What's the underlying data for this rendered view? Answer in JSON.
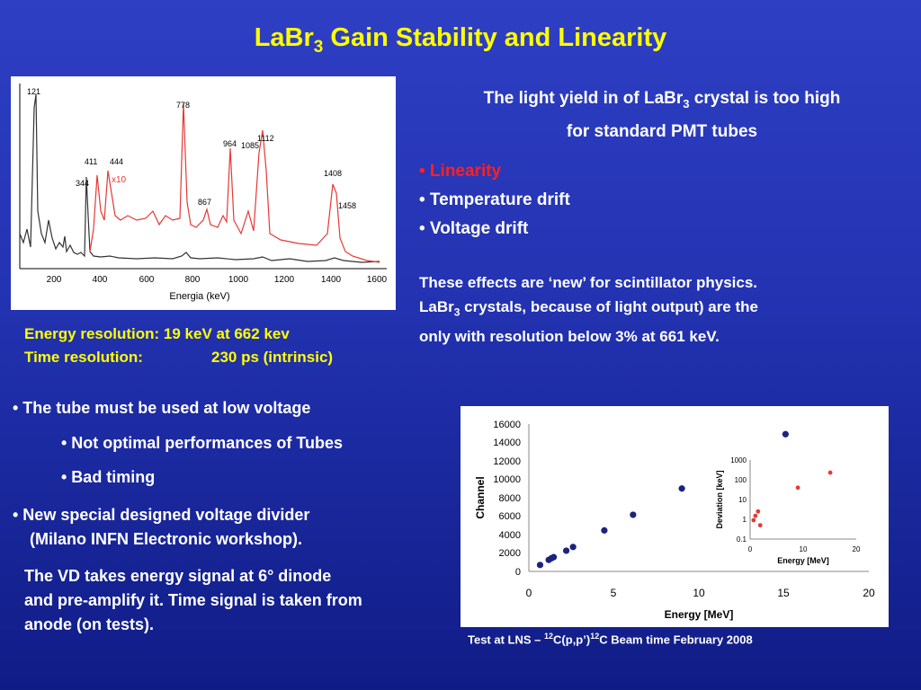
{
  "title": {
    "main": "LaBr",
    "sub": "3",
    "rest": " Gain Stability and Linearity"
  },
  "spectrum": {
    "xlabel": "Energia (keV)",
    "x_ticks": [
      "200",
      "400",
      "600",
      "800",
      "1000",
      "1200",
      "1400",
      "1600"
    ],
    "peak_labels": [
      "121",
      "344",
      "411",
      "444",
      "778",
      "867",
      "964",
      "1085",
      "1112",
      "1408",
      "1458"
    ],
    "scale_label": "x10"
  },
  "resolution": {
    "energy": "Energy resolution: 19 keV at 662 kev",
    "time_label": "Time resolution:",
    "time_value": "230 ps  (intrinsic)"
  },
  "right_text": {
    "line1_a": "The light yield in of LaBr",
    "line1_sub": "3",
    "line1_b": " crystal is too high",
    "line2": "for  standard PMT tubes",
    "bullet_linearity": "• Linearity",
    "bullet_temp": "• Temperature drift",
    "bullet_volt": "• Voltage drift",
    "effects_1": "These effects are ‘new’ for scintillator physics.",
    "effects_2a": "LaBr",
    "effects_2sub": "3",
    "effects_2b": " crystals, because of light output) are the",
    "effects_3": "only with resolution below 3% at 661 keV."
  },
  "left_bullets": {
    "b1": "• The tube must be used at low voltage",
    "b1a": "• Not optimal performances of Tubes",
    "b1b": "• Bad timing",
    "b2": "• New special designed voltage divider",
    "b2cont": "(Milano INFN Electronic workshop).",
    "vd_1": "The VD takes energy signal at 6° dinode",
    "vd_2": "and pre-amplify it. Time signal is taken from",
    "vd_3": "anode (on tests)."
  },
  "caption": {
    "a": "Test at LNS – ",
    "s1": "12",
    "b": "C(p,p’)",
    "s2": "12",
    "c": "C  Beam time February 2008"
  },
  "chart_data": [
    {
      "type": "scatter",
      "xlabel": "Energy [MeV]",
      "ylabel": "Channel",
      "xlim": [
        0,
        20
      ],
      "ylim": [
        0,
        16000
      ],
      "x_ticks": [
        "0",
        "5",
        "10",
        "15",
        "20"
      ],
      "y_ticks": [
        "0",
        "2000",
        "4000",
        "6000",
        "8000",
        "10000",
        "12000",
        "14000",
        "16000"
      ],
      "marker_color": "#1a237e",
      "series": [
        {
          "x": [
            0.66,
            1.17,
            1.33,
            1.46,
            2.2,
            2.6,
            4.44,
            6.13,
            9.0,
            15.1
          ],
          "y": [
            700,
            1250,
            1430,
            1550,
            2250,
            2650,
            4450,
            6150,
            9000,
            14900
          ]
        }
      ]
    },
    {
      "type": "scatter",
      "xlabel": "Energy [MeV]",
      "ylabel": "Deviation [keV]",
      "xlim": [
        0,
        20
      ],
      "ylim": [
        0.1,
        1000
      ],
      "yscale": "log",
      "x_ticks": [
        "0",
        "10",
        "20"
      ],
      "y_ticks": [
        "0.1",
        "1",
        "10",
        "100",
        "1000"
      ],
      "marker_color": "#e53935",
      "series": [
        {
          "x": [
            0.66,
            1.0,
            1.5,
            1.9,
            9.0,
            15.1
          ],
          "y": [
            0.9,
            1.5,
            2.5,
            0.5,
            40,
            230
          ]
        }
      ]
    }
  ]
}
